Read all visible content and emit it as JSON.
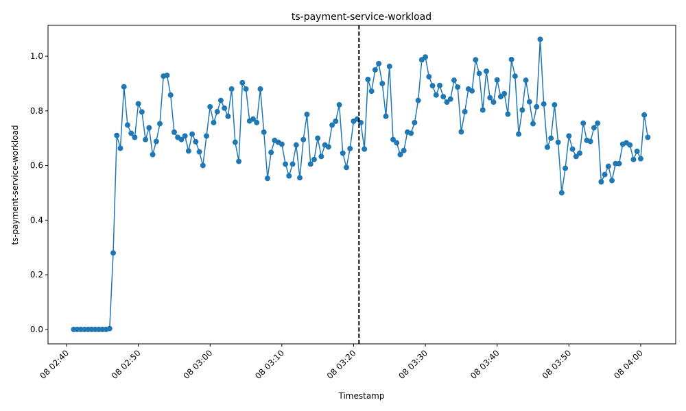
{
  "chart_data": {
    "type": "line",
    "title": "ts-payment-service-workload",
    "x_label": "Timestamp",
    "y_label": "ts-payment-service-workload",
    "x": [
      "08 02:41:00",
      "08 02:41:30",
      "08 02:42:00",
      "08 02:42:30",
      "08 02:43:00",
      "08 02:43:30",
      "08 02:44:00",
      "08 02:44:30",
      "08 02:45:00",
      "08 02:45:30",
      "08 02:46:00",
      "08 02:46:30",
      "08 02:47:00",
      "08 02:47:30",
      "08 02:48:00",
      "08 02:48:30",
      "08 02:49:00",
      "08 02:49:30",
      "08 02:50:00",
      "08 02:50:30",
      "08 02:51:00",
      "08 02:51:30",
      "08 02:52:00",
      "08 02:52:30",
      "08 02:53:00",
      "08 02:53:30",
      "08 02:54:00",
      "08 02:54:30",
      "08 02:55:00",
      "08 02:55:30",
      "08 02:56:00",
      "08 02:56:30",
      "08 02:57:00",
      "08 02:57:30",
      "08 02:58:00",
      "08 02:58:30",
      "08 02:59:00",
      "08 02:59:30",
      "08 03:00:00",
      "08 03:00:30",
      "08 03:01:00",
      "08 03:01:30",
      "08 03:02:00",
      "08 03:02:30",
      "08 03:03:00",
      "08 03:03:30",
      "08 03:04:00",
      "08 03:04:30",
      "08 03:05:00",
      "08 03:05:30",
      "08 03:06:00",
      "08 03:06:30",
      "08 03:07:00",
      "08 03:07:30",
      "08 03:08:00",
      "08 03:08:30",
      "08 03:09:00",
      "08 03:09:30",
      "08 03:10:00",
      "08 03:10:30",
      "08 03:11:00",
      "08 03:11:30",
      "08 03:12:00",
      "08 03:12:30",
      "08 03:13:00",
      "08 03:13:30",
      "08 03:14:00",
      "08 03:14:30",
      "08 03:15:00",
      "08 03:15:30",
      "08 03:16:00",
      "08 03:16:30",
      "08 03:17:00",
      "08 03:17:30",
      "08 03:18:00",
      "08 03:18:30",
      "08 03:19:00",
      "08 03:19:30",
      "08 03:20:00",
      "08 03:20:30",
      "08 03:21:00",
      "08 03:21:30",
      "08 03:22:00",
      "08 03:22:30",
      "08 03:23:00",
      "08 03:23:30",
      "08 03:24:00",
      "08 03:24:30",
      "08 03:25:00",
      "08 03:25:30",
      "08 03:26:00",
      "08 03:26:30",
      "08 03:27:00",
      "08 03:27:30",
      "08 03:28:00",
      "08 03:28:30",
      "08 03:29:00",
      "08 03:29:30",
      "08 03:30:00",
      "08 03:30:30",
      "08 03:31:00",
      "08 03:31:30",
      "08 03:32:00",
      "08 03:32:30",
      "08 03:33:00",
      "08 03:33:30",
      "08 03:34:00",
      "08 03:34:30",
      "08 03:35:00",
      "08 03:35:30",
      "08 03:36:00",
      "08 03:36:30",
      "08 03:37:00",
      "08 03:37:30",
      "08 03:38:00",
      "08 03:38:30",
      "08 03:39:00",
      "08 03:39:30",
      "08 03:40:00",
      "08 03:40:30",
      "08 03:41:00",
      "08 03:41:30",
      "08 03:42:00",
      "08 03:42:30",
      "08 03:43:00",
      "08 03:43:30",
      "08 03:44:00",
      "08 03:44:30",
      "08 03:45:00",
      "08 03:45:30",
      "08 03:46:00",
      "08 03:46:30",
      "08 03:47:00",
      "08 03:47:30",
      "08 03:48:00",
      "08 03:48:30",
      "08 03:49:00",
      "08 03:49:30",
      "08 03:50:00",
      "08 03:50:30",
      "08 03:51:00",
      "08 03:51:30",
      "08 03:52:00",
      "08 03:52:30",
      "08 03:53:00",
      "08 03:53:30",
      "08 03:54:00",
      "08 03:54:30",
      "08 03:55:00",
      "08 03:55:30",
      "08 03:56:00",
      "08 03:56:30",
      "08 03:57:00",
      "08 03:57:30",
      "08 03:58:00",
      "08 03:58:30",
      "08 03:59:00",
      "08 03:59:30",
      "08 04:00:00",
      "08 04:00:30",
      "08 04:01:00"
    ],
    "series": [
      {
        "name": "ts-payment-service-workload",
        "color": "#1f77b4",
        "values": [
          0,
          0,
          0,
          0,
          0,
          0,
          0,
          0,
          0,
          0,
          0.003,
          0.28,
          0.71,
          0.663,
          0.888,
          0.748,
          0.718,
          0.703,
          0.826,
          0.796,
          0.695,
          0.738,
          0.64,
          0.688,
          0.753,
          0.927,
          0.93,
          0.858,
          0.722,
          0.703,
          0.695,
          0.708,
          0.653,
          0.715,
          0.687,
          0.65,
          0.6,
          0.708,
          0.815,
          0.757,
          0.797,
          0.838,
          0.81,
          0.78,
          0.88,
          0.685,
          0.615,
          0.903,
          0.88,
          0.763,
          0.77,
          0.757,
          0.88,
          0.722,
          0.553,
          0.648,
          0.692,
          0.685,
          0.678,
          0.605,
          0.562,
          0.605,
          0.675,
          0.555,
          0.695,
          0.787,
          0.605,
          0.622,
          0.7,
          0.633,
          0.675,
          0.668,
          0.748,
          0.762,
          0.822,
          0.645,
          0.593,
          0.662,
          0.762,
          0.77,
          0.757,
          0.66,
          0.915,
          0.872,
          0.95,
          0.973,
          0.9,
          0.78,
          0.963,
          0.695,
          0.683,
          0.64,
          0.655,
          0.722,
          0.718,
          0.757,
          0.838,
          0.987,
          0.997,
          0.925,
          0.892,
          0.858,
          0.893,
          0.852,
          0.832,
          0.843,
          0.912,
          0.887,
          0.723,
          0.797,
          0.88,
          0.873,
          0.987,
          0.937,
          0.803,
          0.945,
          0.848,
          0.832,
          0.913,
          0.852,
          0.863,
          0.788,
          0.988,
          0.927,
          0.715,
          0.803,
          0.912,
          0.833,
          0.753,
          0.815,
          1.062,
          0.825,
          0.667,
          0.7,
          0.822,
          0.685,
          0.5,
          0.59,
          0.708,
          0.66,
          0.633,
          0.645,
          0.755,
          0.692,
          0.688,
          0.738,
          0.755,
          0.54,
          0.567,
          0.597,
          0.545,
          0.607,
          0.607,
          0.678,
          0.683,
          0.675,
          0.622,
          0.652,
          0.625,
          0.785,
          0.703
        ]
      }
    ],
    "xlim": [
      "08 02:37:25",
      "08 04:04:53"
    ],
    "xticks": [
      "08 02:40",
      "08 02:50",
      "08 03:00",
      "08 03:10",
      "08 03:20",
      "08 03:30",
      "08 03:40",
      "08 03:50",
      "08 04:00"
    ],
    "ylim": [
      -0.053,
      1.113
    ],
    "yticks": [
      {
        "value": 0,
        "label": "0.0"
      },
      {
        "value": 0.2,
        "label": "0.2"
      },
      {
        "value": 0.4,
        "label": "0.4"
      },
      {
        "value": 0.6,
        "label": "0.6"
      },
      {
        "value": 0.8,
        "label": "0.8"
      },
      {
        "value": 1,
        "label": "1.0"
      }
    ],
    "vline": {
      "x": "08 03:20:45",
      "color": "#000000",
      "style": "dashed"
    },
    "grid": false,
    "markers": true
  }
}
